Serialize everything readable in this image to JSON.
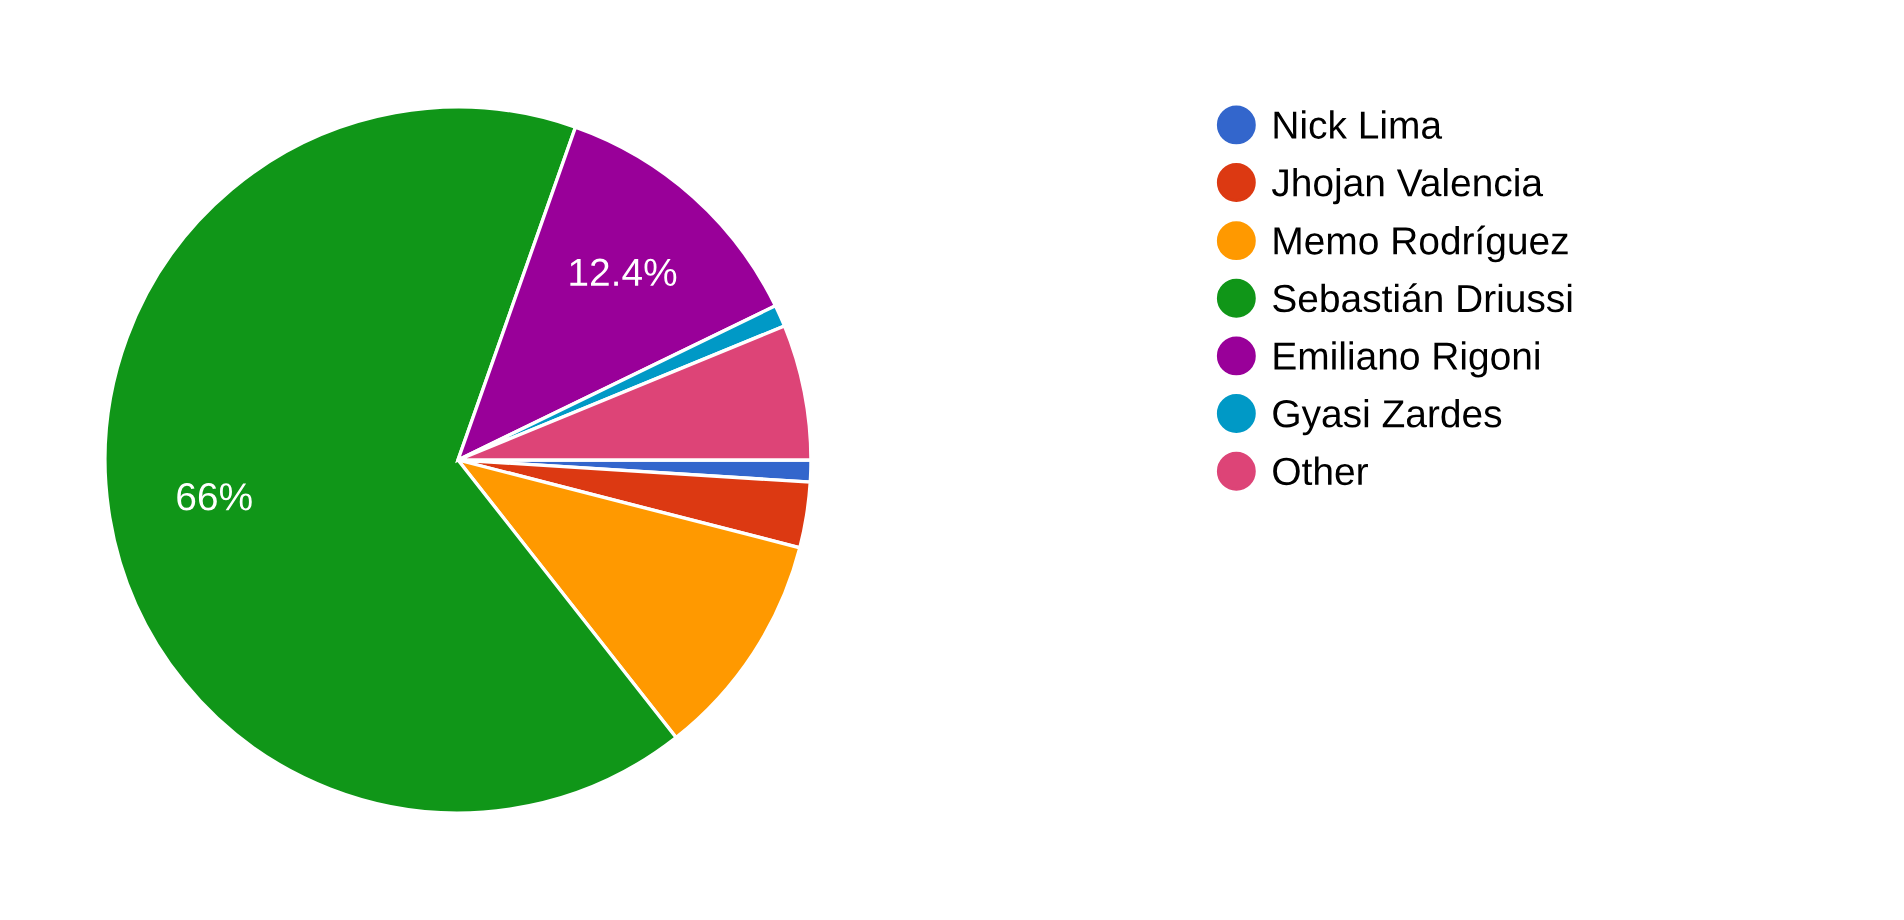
{
  "chart_data": {
    "type": "pie",
    "categories": [
      "Nick Lima",
      "Jhojan Valencia",
      "Memo Rodríguez",
      "Sebastián Driussi",
      "Emiliano Rigoni",
      "Gyasi Zardes",
      "Other"
    ],
    "values": [
      1,
      3,
      10.4,
      66,
      12.4,
      1,
      6.2
    ],
    "colors": [
      "#3366cc",
      "#dc3912",
      "#ff9900",
      "#109618",
      "#990099",
      "#0099c6",
      "#dd4477"
    ],
    "value_labels": [
      null,
      null,
      null,
      "66%",
      "12.4%",
      null,
      null
    ],
    "legend": "right"
  }
}
